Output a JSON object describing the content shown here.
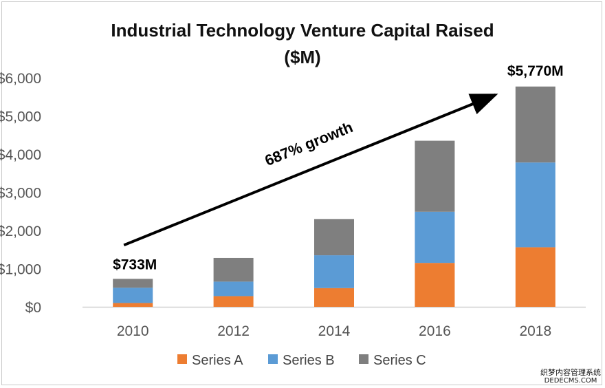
{
  "chart_data": {
    "type": "bar",
    "stacked": true,
    "title": "Industrial Technology Venture Capital Raised",
    "subtitle": "($M)",
    "categories": [
      "2010",
      "2012",
      "2014",
      "2016",
      "2018"
    ],
    "series": [
      {
        "name": "Series A",
        "color": "#ed7d31",
        "values": [
          100,
          280,
          490,
          1150,
          1560
        ]
      },
      {
        "name": "Series B",
        "color": "#5b9bd5",
        "values": [
          400,
          380,
          860,
          1340,
          2220
        ]
      },
      {
        "name": "Series C",
        "color": "#7f7f7f",
        "values": [
          233,
          620,
          950,
          1860,
          1990
        ]
      }
    ],
    "ylim": [
      0,
      6000
    ],
    "yticks": [
      0,
      1000,
      2000,
      3000,
      4000,
      5000,
      6000
    ],
    "ytick_labels": [
      "$0",
      "$1,000",
      "$2,000",
      "$3,000",
      "$4,000",
      "$5,000",
      "$6,000"
    ],
    "xlabel": "",
    "ylabel": "",
    "grid": false,
    "legend_position": "bottom",
    "annotations": {
      "start_label": "$733M",
      "end_label": "$5,770M",
      "growth_label": "687% growth"
    }
  },
  "watermark": {
    "line1": "织梦内容管理系统",
    "line2": "DEDECMS.COM"
  }
}
